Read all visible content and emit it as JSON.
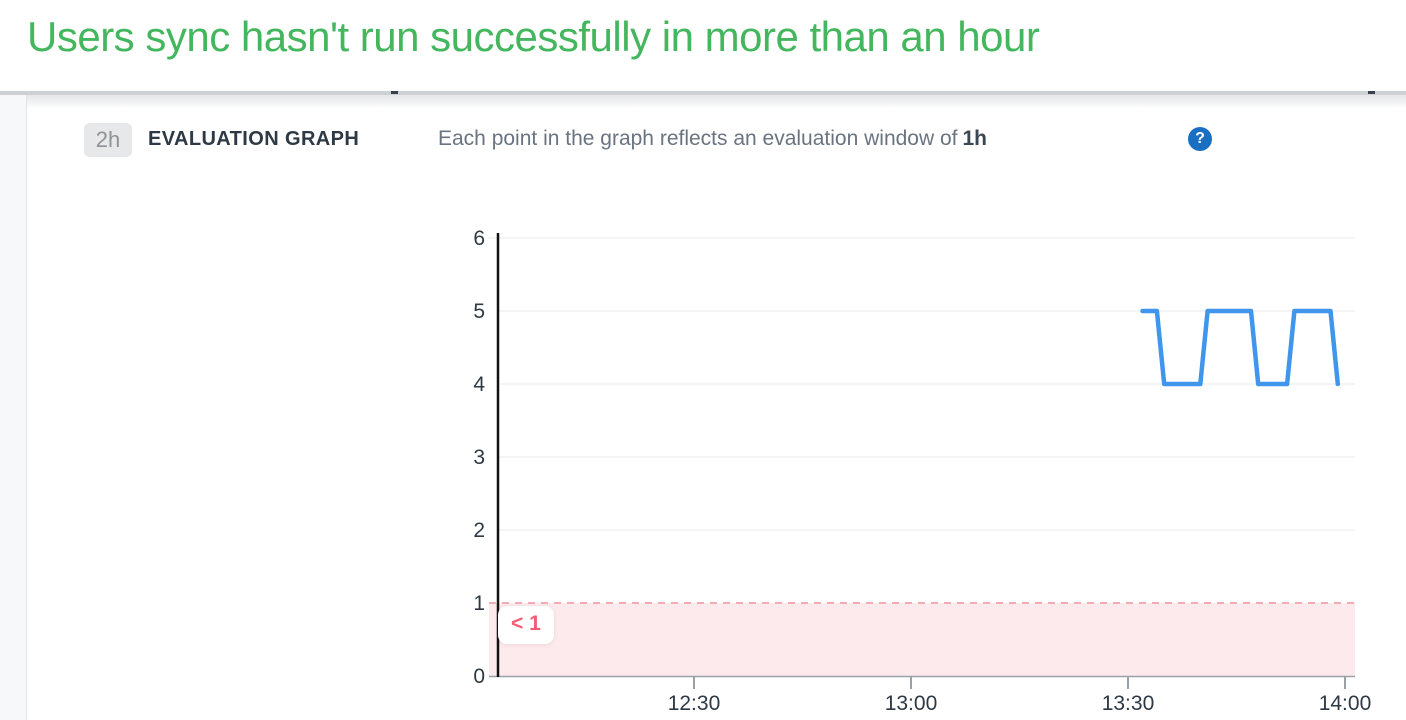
{
  "page": {
    "title": "Users sync hasn't run successfully in more than an hour"
  },
  "evaluation_header": {
    "window_badge": "2h",
    "section_label": "EVALUATION GRAPH",
    "description": "Each point in the graph reflects an evaluation window of",
    "description_window": "1h",
    "help_icon": "question-mark-circle"
  },
  "colors": {
    "title_green": "#44b75e",
    "series_blue": "#4096ec",
    "threshold_region": "#fceaec",
    "threshold_line": "#f4abb4",
    "threshold_text": "#f25d74",
    "help_icon_blue": "#1a6fc2",
    "axis_text": "#2d3944",
    "gridline": "#e9e9e9",
    "axis_line": "#9aa0a5"
  },
  "chart_data": {
    "type": "line",
    "title": "",
    "xlabel": "",
    "ylabel": "",
    "ylim": [
      0,
      6
    ],
    "y_ticks": [
      0,
      1,
      2,
      3,
      4,
      5,
      6
    ],
    "x_ticks": [
      "12:30",
      "13:00",
      "13:30",
      "14:00"
    ],
    "x_visible_range": [
      "12:02",
      "14:01"
    ],
    "grid": true,
    "legend": false,
    "series": [
      {
        "color": "#4096ec",
        "points": [
          [
            "13:32",
            5
          ],
          [
            "13:34",
            5
          ],
          [
            "13:35",
            4
          ],
          [
            "13:40",
            4
          ],
          [
            "13:41",
            5
          ],
          [
            "13:47",
            5
          ],
          [
            "13:48",
            4
          ],
          [
            "13:52",
            4
          ],
          [
            "13:53",
            5
          ],
          [
            "13:58",
            5
          ],
          [
            "13:59",
            4
          ]
        ]
      }
    ],
    "threshold": {
      "operator": "<",
      "value": 1,
      "label": "< 1"
    }
  }
}
